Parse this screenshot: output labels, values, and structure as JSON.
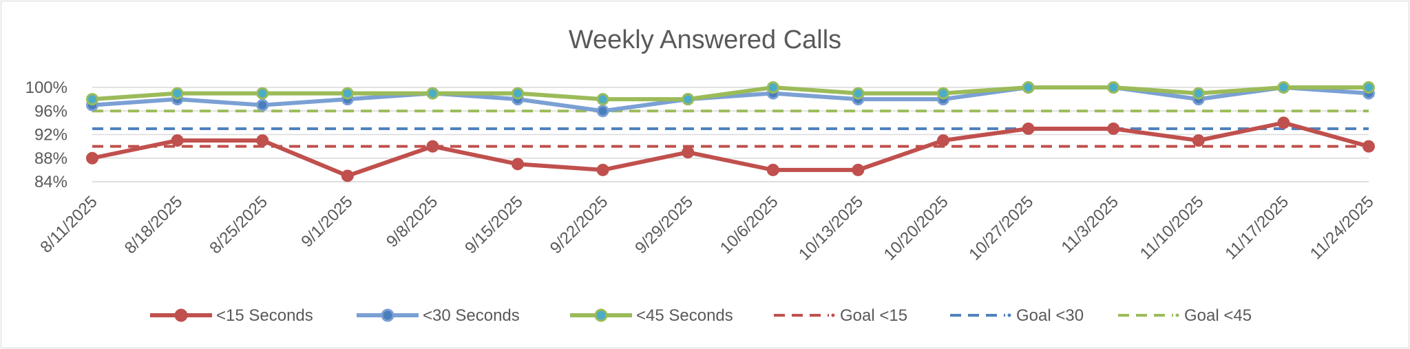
{
  "chart_data": {
    "type": "line",
    "title": "Weekly Answered Calls",
    "xlabel": "",
    "ylabel": "",
    "categories": [
      "8/11/2025",
      "8/18/2025",
      "8/25/2025",
      "9/1/2025",
      "9/8/2025",
      "9/15/2025",
      "9/22/2025",
      "9/29/2025",
      "10/6/2025",
      "10/13/2025",
      "10/20/2025",
      "10/27/2025",
      "11/3/2025",
      "11/10/2025",
      "11/17/2025",
      "11/24/2025"
    ],
    "yticks": [
      "84%",
      "88%",
      "92%",
      "96%",
      "100%"
    ],
    "ylim": [
      84,
      100
    ],
    "grid": true,
    "legend_position": "bottom",
    "series": [
      {
        "name": "<15 Seconds",
        "style": "solid-marker",
        "color": "#c0504d",
        "marker_fill": "#c0504d",
        "values": [
          88,
          91,
          91,
          85,
          90,
          87,
          86,
          89,
          86,
          86,
          91,
          93,
          93,
          91,
          94,
          90
        ]
      },
      {
        "name": "<30 Seconds",
        "style": "solid-marker",
        "color": "#7ba0d4",
        "marker_fill": "#4a7ebb",
        "values": [
          97,
          98,
          97,
          98,
          99,
          98,
          96,
          98,
          99,
          98,
          98,
          100,
          100,
          98,
          100,
          99
        ]
      },
      {
        "name": "<45 Seconds",
        "style": "solid-marker",
        "color": "#9bbb59",
        "marker_fill": "#4bacc6",
        "values": [
          98,
          99,
          99,
          99,
          99,
          99,
          98,
          98,
          100,
          99,
          99,
          100,
          100,
          99,
          100,
          100
        ]
      },
      {
        "name": "Goal <15",
        "style": "dashed",
        "color": "#c0504d",
        "values": [
          90,
          90,
          90,
          90,
          90,
          90,
          90,
          90,
          90,
          90,
          90,
          90,
          90,
          90,
          90,
          90
        ]
      },
      {
        "name": "Goal <30",
        "style": "dashed",
        "color": "#4f81bd",
        "values": [
          93,
          93,
          93,
          93,
          93,
          93,
          93,
          93,
          93,
          93,
          93,
          93,
          93,
          93,
          93,
          93
        ]
      },
      {
        "name": "Goal <45",
        "style": "dashed",
        "color": "#9bbb59",
        "values": [
          96,
          96,
          96,
          96,
          96,
          96,
          96,
          96,
          96,
          96,
          96,
          96,
          96,
          96,
          96,
          96
        ]
      }
    ]
  }
}
